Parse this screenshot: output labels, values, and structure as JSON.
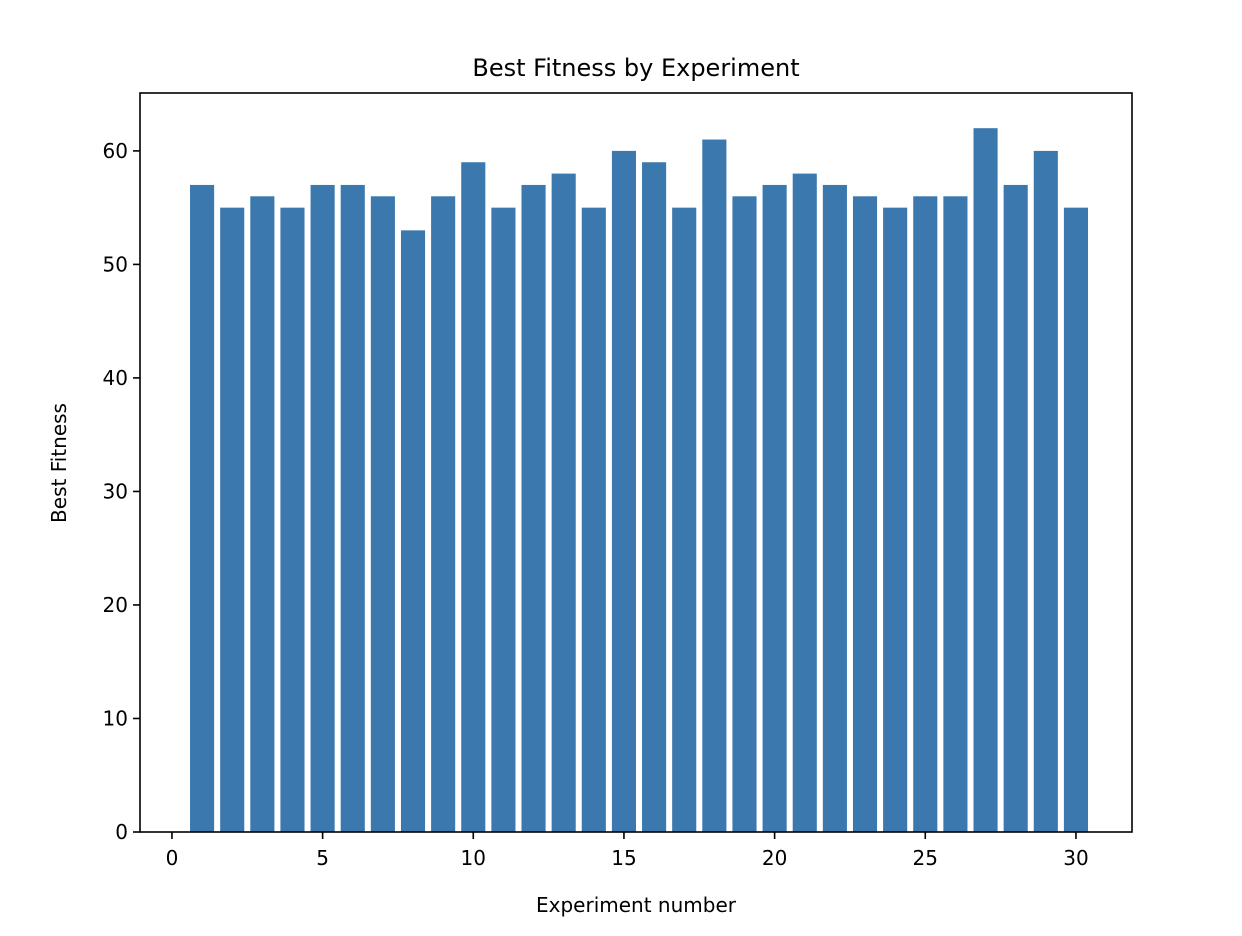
{
  "chart_data": {
    "type": "bar",
    "title": "Best Fitness by Experiment",
    "xlabel": "Experiment number",
    "ylabel": "Best Fitness",
    "categories": [
      1,
      2,
      3,
      4,
      5,
      6,
      7,
      8,
      9,
      10,
      11,
      12,
      13,
      14,
      15,
      16,
      17,
      18,
      19,
      20,
      21,
      22,
      23,
      24,
      25,
      26,
      27,
      28,
      29,
      30
    ],
    "values": [
      57,
      55,
      56,
      55,
      57,
      57,
      56,
      53,
      56,
      59,
      55,
      57,
      58,
      55,
      60,
      59,
      55,
      61,
      56,
      57,
      58,
      57,
      56,
      55,
      56,
      56,
      62,
      57,
      60,
      55
    ],
    "xlim": [
      -1.06,
      31.86
    ],
    "ylim": [
      0,
      65.1
    ],
    "xticks": [
      0,
      5,
      10,
      15,
      20,
      25,
      30
    ],
    "yticks": [
      0,
      10,
      20,
      30,
      40,
      50,
      60
    ],
    "bar_color": "#3a78ae",
    "grid": false
  }
}
